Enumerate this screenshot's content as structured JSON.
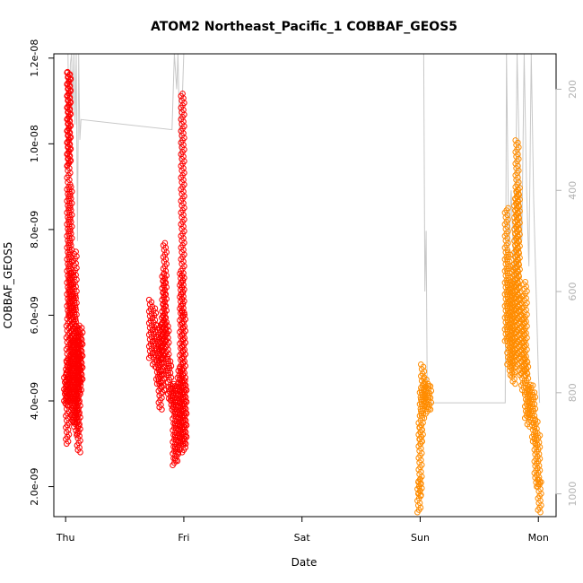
{
  "chart_data": {
    "type": "scatter",
    "title": "ATOM2 Northeast_Pacific_1 COBBAF_GEOS5",
    "xlabel": "Date",
    "ylabel": "COBBAF_GEOS5",
    "x_ticks": [
      "Thu",
      "Fri",
      "Sat",
      "Sun",
      "Mon"
    ],
    "y_ticks": [
      "2.0e-09",
      "4.0e-09",
      "6.0e-09",
      "8.0e-09",
      "1.0e-08",
      "1.2e-08"
    ],
    "y_tick_values": [
      2e-09,
      4e-09,
      6e-09,
      8e-09,
      1e-08,
      1.2e-08
    ],
    "ylim": [
      1.3e-09,
      1.21e-08
    ],
    "xlim_days": [
      -0.1,
      4.15
    ],
    "right_axis": {
      "label": "",
      "ticks": [
        "200",
        "400",
        "600",
        "800",
        "1000"
      ],
      "tick_values": [
        200,
        400,
        600,
        800,
        1000
      ],
      "inverted": true,
      "range": [
        130,
        1045
      ]
    },
    "colors": {
      "series_1": "#ff0000",
      "series_2": "#ff8c00",
      "pressure_line": "#c8c8c8",
      "axis": "#000000",
      "right_axis": "#b3b3b3"
    },
    "series": [
      {
        "color": "#ff0000",
        "clusters": [
          {
            "x_start": 0.0,
            "x_end": 0.13,
            "segments": [
              [
                0.0,
                4e-09,
                4.6e-09
              ],
              [
                0.01,
                3.9e-09,
                4.4e-09
              ],
              [
                0.015,
                3e-09,
                5e-09
              ],
              [
                0.02,
                4.5e-09,
                6e-09
              ],
              [
                0.025,
                6e-09,
                1.17e-08
              ],
              [
                0.03,
                9.5e-09,
                1.17e-08
              ],
              [
                0.04,
                6e-09,
                9e-09
              ],
              [
                0.05,
                4e-09,
                7e-09
              ],
              [
                0.06,
                3.5e-09,
                5.5e-09
              ],
              [
                0.07,
                3.4e-09,
                6.5e-09
              ],
              [
                0.08,
                4e-09,
                7.5e-09
              ],
              [
                0.09,
                3.6e-09,
                5.5e-09
              ],
              [
                0.1,
                3.2e-09,
                5.8e-09
              ],
              [
                0.11,
                2.8e-09,
                5e-09
              ],
              [
                0.12,
                4.2e-09,
                5.6e-09
              ],
              [
                0.13,
                4.4e-09,
                5.8e-09
              ]
            ]
          },
          {
            "x_start": 0.72,
            "x_end": 1.02,
            "segments": [
              [
                0.72,
                5e-09,
                6.4e-09
              ],
              [
                0.75,
                4.8e-09,
                6.2e-09
              ],
              [
                0.78,
                4.4e-09,
                5.8e-09
              ],
              [
                0.8,
                3.8e-09,
                5.4e-09
              ],
              [
                0.82,
                4.2e-09,
                6e-09
              ],
              [
                0.83,
                5e-09,
                7e-09
              ],
              [
                0.84,
                5.4e-09,
                7.7e-09
              ],
              [
                0.86,
                4.6e-09,
                5.8e-09
              ],
              [
                0.88,
                4e-09,
                5e-09
              ],
              [
                0.9,
                3.8e-09,
                4.4e-09
              ],
              [
                0.92,
                2.5e-09,
                4.4e-09
              ],
              [
                0.94,
                2.6e-09,
                4.4e-09
              ],
              [
                0.96,
                2.8e-09,
                4.8e-09
              ],
              [
                0.98,
                3e-09,
                7e-09
              ],
              [
                0.99,
                6e-09,
                1.12e-08
              ],
              [
                1.0,
                2.8e-09,
                6.1e-09
              ],
              [
                1.01,
                3e-09,
                4.5e-09
              ]
            ]
          }
        ]
      },
      {
        "color": "#ff8c00",
        "clusters": [
          {
            "x_start": 2.98,
            "x_end": 3.08,
            "segments": [
              [
                2.99,
                1.4e-09,
                2.2e-09
              ],
              [
                3.0,
                1.8e-09,
                3.5e-09
              ],
              [
                3.01,
                3e-09,
                4.3e-09
              ],
              [
                3.02,
                3.6e-09,
                4.9e-09
              ],
              [
                3.04,
                3.9e-09,
                4.6e-09
              ],
              [
                3.06,
                3.7e-09,
                4.4e-09
              ],
              [
                3.08,
                3.8e-09,
                4.4e-09
              ]
            ]
          },
          {
            "x_start": 3.72,
            "x_end": 4.02,
            "segments": [
              [
                3.73,
                5.4e-09,
                8.5e-09
              ],
              [
                3.75,
                4.8e-09,
                7.5e-09
              ],
              [
                3.77,
                4.6e-09,
                6.8e-09
              ],
              [
                3.79,
                4.4e-09,
                7.2e-09
              ],
              [
                3.81,
                4.8e-09,
                8.8e-09
              ],
              [
                3.82,
                6e-09,
                1.01e-08
              ],
              [
                3.83,
                5e-09,
                9e-09
              ],
              [
                3.85,
                4.6e-09,
                6.5e-09
              ],
              [
                3.87,
                4.2e-09,
                6e-09
              ],
              [
                3.89,
                4.6e-09,
                6.8e-09
              ],
              [
                3.9,
                3.6e-09,
                5e-09
              ],
              [
                3.92,
                3.4e-09,
                4.4e-09
              ],
              [
                3.94,
                3.6e-09,
                4.4e-09
              ],
              [
                3.96,
                3e-09,
                4.2e-09
              ],
              [
                3.98,
                2.1e-09,
                3.6e-09
              ],
              [
                4.0,
                2e-09,
                3.2e-09
              ],
              [
                4.01,
                1.4e-09,
                2.2e-09
              ]
            ]
          }
        ]
      }
    ],
    "pressure_track": [
      [
        0.0,
        130
      ],
      [
        0.02,
        130
      ],
      [
        0.03,
        380
      ],
      [
        0.04,
        150
      ],
      [
        0.05,
        130
      ],
      [
        0.06,
        250
      ],
      [
        0.07,
        130
      ],
      [
        0.08,
        270
      ],
      [
        0.09,
        130
      ],
      [
        0.1,
        500
      ],
      [
        0.11,
        130
      ],
      [
        0.12,
        300
      ],
      [
        0.13,
        260
      ],
      [
        0.9,
        280
      ],
      [
        0.92,
        130
      ],
      [
        0.94,
        200
      ],
      [
        0.95,
        130
      ],
      [
        0.97,
        350
      ],
      [
        0.99,
        200
      ],
      [
        1.0,
        130
      ],
      [
        1.01,
        130
      ],
      [
        2.98,
        130
      ],
      [
        3.03,
        130
      ],
      [
        3.04,
        600
      ],
      [
        3.05,
        480
      ],
      [
        3.06,
        820
      ],
      [
        3.72,
        820
      ],
      [
        3.73,
        130
      ],
      [
        3.75,
        520
      ],
      [
        3.77,
        400
      ],
      [
        3.8,
        600
      ],
      [
        3.82,
        130
      ],
      [
        3.84,
        350
      ],
      [
        3.86,
        500
      ],
      [
        3.88,
        130
      ],
      [
        3.9,
        400
      ],
      [
        3.92,
        550
      ],
      [
        3.94,
        130
      ],
      [
        3.96,
        420
      ],
      [
        4.0,
        760
      ],
      [
        4.01,
        820
      ]
    ]
  }
}
